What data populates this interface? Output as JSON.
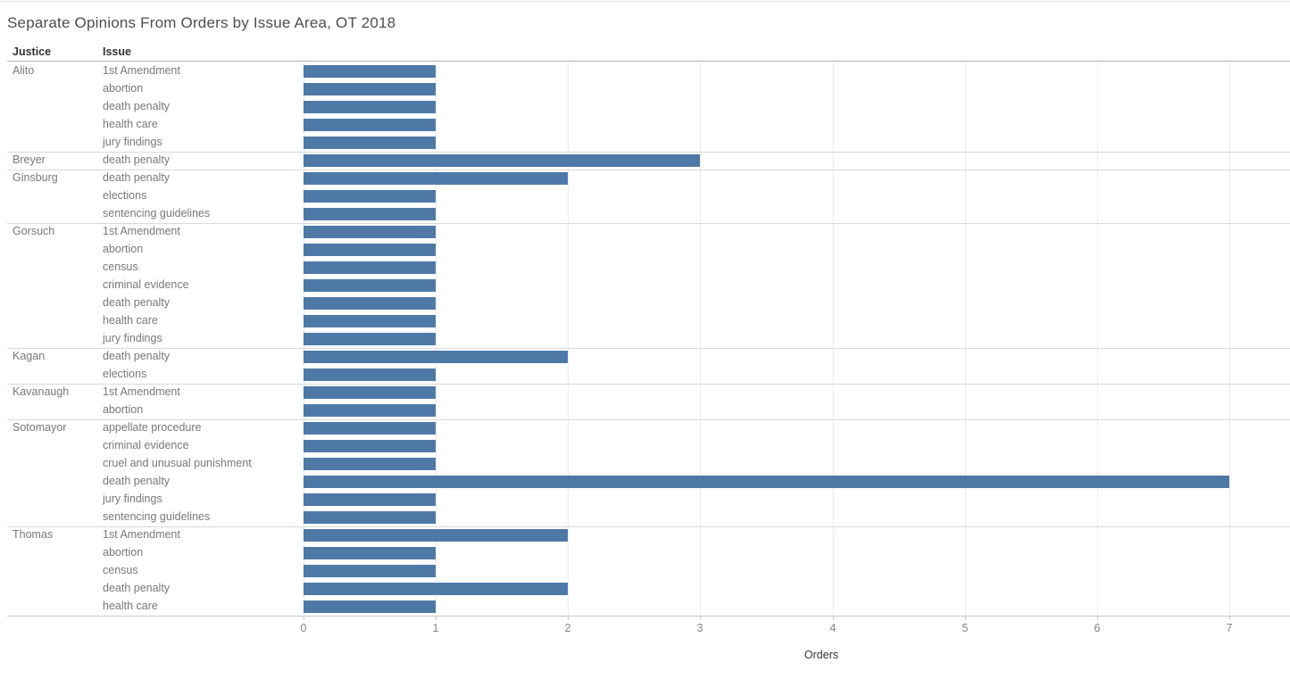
{
  "chart_data": {
    "type": "bar",
    "orientation": "horizontal",
    "title": "Separate Opinions From Orders by Issue Area, OT 2018",
    "row_headers": {
      "justice": "Justice",
      "issue": "Issue"
    },
    "xlabel": "Orders",
    "xlim": [
      0,
      7
    ],
    "x_ticks": [
      0,
      1,
      2,
      3,
      4,
      5,
      6,
      7
    ],
    "grid": true,
    "bar_color": "#4e79a7",
    "groups": [
      {
        "justice": "Alito",
        "rows": [
          {
            "issue": "1st Amendment",
            "orders": 1
          },
          {
            "issue": "abortion",
            "orders": 1
          },
          {
            "issue": "death penalty",
            "orders": 1
          },
          {
            "issue": "health care",
            "orders": 1
          },
          {
            "issue": "jury findings",
            "orders": 1
          }
        ]
      },
      {
        "justice": "Breyer",
        "rows": [
          {
            "issue": "death penalty",
            "orders": 3
          }
        ]
      },
      {
        "justice": "Ginsburg",
        "rows": [
          {
            "issue": "death penalty",
            "orders": 2
          },
          {
            "issue": "elections",
            "orders": 1
          },
          {
            "issue": "sentencing guidelines",
            "orders": 1
          }
        ]
      },
      {
        "justice": "Gorsuch",
        "rows": [
          {
            "issue": "1st Amendment",
            "orders": 1
          },
          {
            "issue": "abortion",
            "orders": 1
          },
          {
            "issue": "census",
            "orders": 1
          },
          {
            "issue": "criminal evidence",
            "orders": 1
          },
          {
            "issue": "death penalty",
            "orders": 1
          },
          {
            "issue": "health care",
            "orders": 1
          },
          {
            "issue": "jury findings",
            "orders": 1
          }
        ]
      },
      {
        "justice": "Kagan",
        "rows": [
          {
            "issue": "death penalty",
            "orders": 2
          },
          {
            "issue": "elections",
            "orders": 1
          }
        ]
      },
      {
        "justice": "Kavanaugh",
        "rows": [
          {
            "issue": "1st Amendment",
            "orders": 1
          },
          {
            "issue": "abortion",
            "orders": 1
          }
        ]
      },
      {
        "justice": "Sotomayor",
        "rows": [
          {
            "issue": "appellate procedure",
            "orders": 1
          },
          {
            "issue": "criminal evidence",
            "orders": 1
          },
          {
            "issue": "cruel and unusual punishment",
            "orders": 1
          },
          {
            "issue": "death penalty",
            "orders": 7
          },
          {
            "issue": "jury findings",
            "orders": 1
          },
          {
            "issue": "sentencing guidelines",
            "orders": 1
          }
        ]
      },
      {
        "justice": "Thomas",
        "rows": [
          {
            "issue": "1st Amendment",
            "orders": 2
          },
          {
            "issue": "abortion",
            "orders": 1
          },
          {
            "issue": "census",
            "orders": 1
          },
          {
            "issue": "death penalty",
            "orders": 2
          },
          {
            "issue": "health care",
            "orders": 1
          }
        ]
      }
    ]
  }
}
